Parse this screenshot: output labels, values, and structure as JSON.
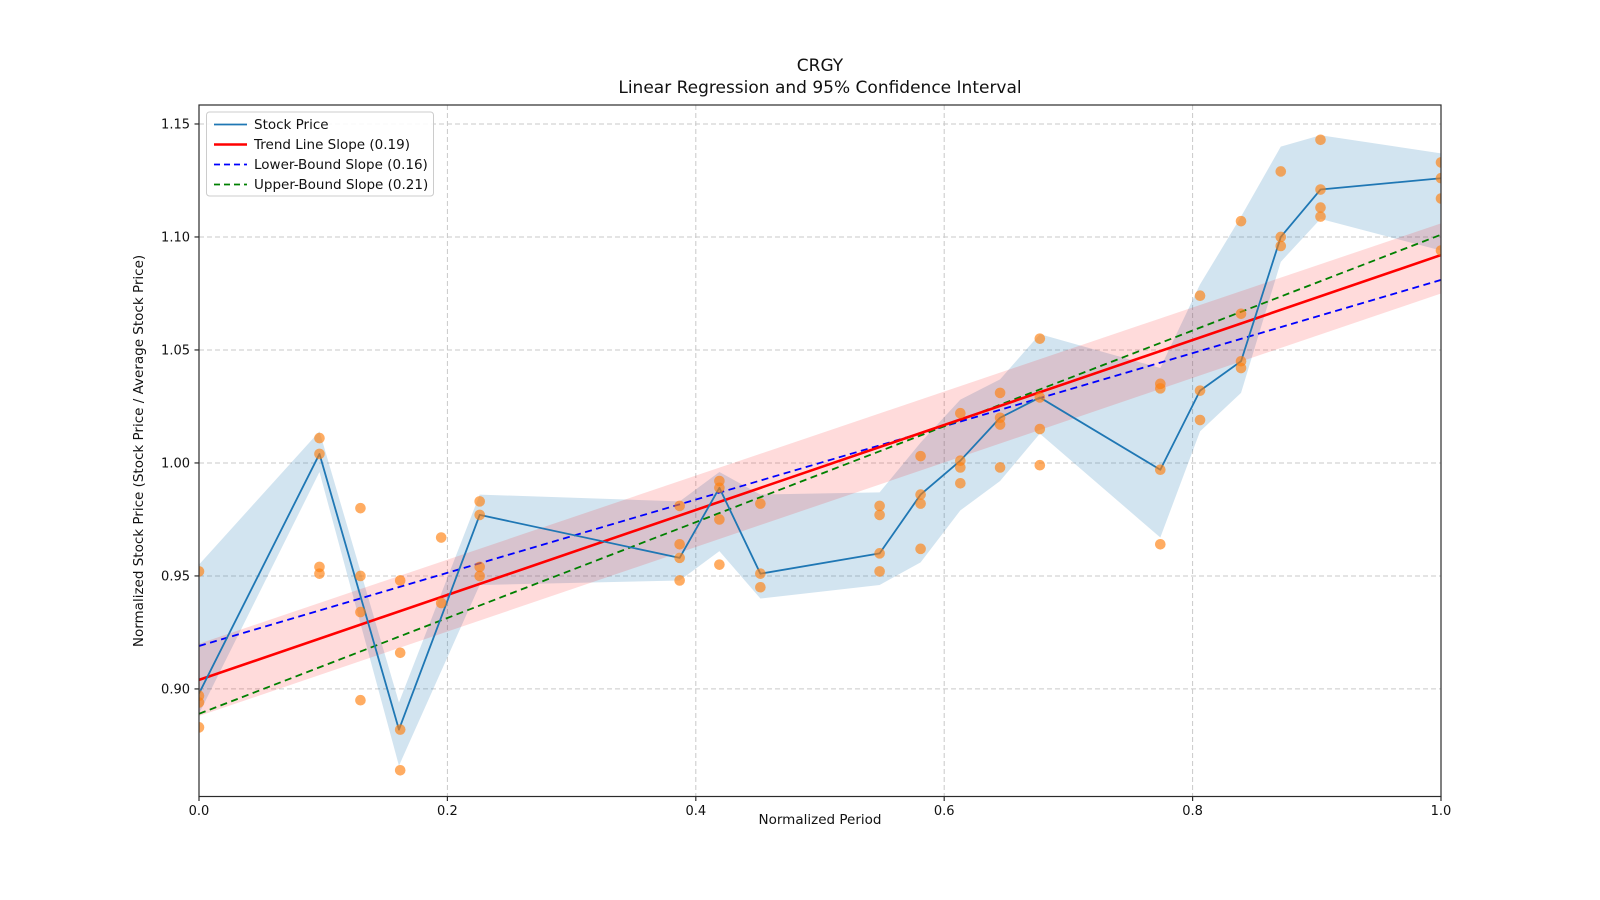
{
  "chart_data": {
    "type": "line",
    "title": "CRGY",
    "subtitle": "Linear Regression and 95% Confidence Interval",
    "xlabel": "Normalized Period",
    "ylabel": "Normalized Stock Price (Stock Price / Average Stock Price)",
    "xlim": [
      0.0,
      1.0
    ],
    "ylim": [
      0.8524,
      1.1584
    ],
    "grid": true,
    "legend_position": "upper left",
    "xticks": {
      "values": [
        0.0,
        0.2,
        0.4,
        0.6,
        0.8,
        1.0
      ],
      "labels": [
        "0.0",
        "0.2",
        "0.4",
        "0.6",
        "0.8",
        "1.0"
      ]
    },
    "yticks": {
      "values": [
        0.9,
        0.95,
        1.0,
        1.05,
        1.1,
        1.15
      ],
      "labels": [
        "0.90",
        "0.95",
        "1.00",
        "1.05",
        "1.10",
        "1.15"
      ]
    },
    "legend": [
      {
        "label": "Stock Price",
        "color": "#1f77b4",
        "dashed": false,
        "width": 1.8
      },
      {
        "label": "Trend Line Slope (0.19)",
        "color": "#ff0000",
        "dashed": false,
        "width": 2.6
      },
      {
        "label": "Lower-Bound Slope (0.16)",
        "color": "#0000ff",
        "dashed": true,
        "width": 1.8
      },
      {
        "label": "Upper-Bound Slope (0.21)",
        "color": "#008000",
        "dashed": true,
        "width": 1.8
      }
    ],
    "series": [
      {
        "name": "Stock Price",
        "x": [
          0.0,
          0.097,
          0.161,
          0.226,
          0.387,
          0.419,
          0.452,
          0.548,
          0.581,
          0.613,
          0.645,
          0.677,
          0.774,
          0.806,
          0.839,
          0.871,
          0.903,
          1.0
        ],
        "y": [
          0.898,
          1.004,
          0.882,
          0.977,
          0.958,
          0.989,
          0.951,
          0.96,
          0.986,
          1.001,
          1.02,
          1.029,
          0.997,
          1.032,
          1.045,
          1.1,
          1.121,
          1.126
        ],
        "band_upper": [
          0.955,
          1.014,
          0.894,
          0.986,
          0.983,
          0.996,
          0.986,
          0.987,
          1.009,
          1.028,
          1.037,
          1.057,
          1.042,
          1.079,
          1.109,
          1.14,
          1.145,
          1.137
        ],
        "band_lower": [
          0.889,
          0.996,
          0.866,
          0.946,
          0.948,
          0.961,
          0.94,
          0.946,
          0.956,
          0.979,
          0.992,
          1.013,
          0.967,
          1.014,
          1.031,
          1.089,
          1.108,
          1.094
        ]
      },
      {
        "name": "Trend Line Slope (0.19)",
        "slope": 0.19,
        "y_start": 0.904,
        "y_end": 1.092
      },
      {
        "name": "Lower-Bound Slope (0.16)",
        "slope": 0.16,
        "y_start": 0.919,
        "y_end": 1.081
      },
      {
        "name": "Upper-Bound Slope (0.21)",
        "slope": 0.21,
        "y_start": 0.889,
        "y_end": 1.101
      }
    ],
    "ci_band": {
      "upper_start": 0.92,
      "lower_start": 0.888,
      "upper_end": 1.106,
      "lower_end": 1.075
    },
    "scatter": [
      [
        0.0,
        0.952
      ],
      [
        0.0,
        0.897
      ],
      [
        0.0,
        0.894
      ],
      [
        0.0,
        0.883
      ],
      [
        0.097,
        1.011
      ],
      [
        0.097,
        1.004
      ],
      [
        0.097,
        0.954
      ],
      [
        0.097,
        0.951
      ],
      [
        0.13,
        0.98
      ],
      [
        0.13,
        0.95
      ],
      [
        0.13,
        0.934
      ],
      [
        0.13,
        0.895
      ],
      [
        0.162,
        0.948
      ],
      [
        0.162,
        0.916
      ],
      [
        0.162,
        0.882
      ],
      [
        0.162,
        0.864
      ],
      [
        0.195,
        0.967
      ],
      [
        0.195,
        0.938
      ],
      [
        0.226,
        0.983
      ],
      [
        0.226,
        0.977
      ],
      [
        0.226,
        0.954
      ],
      [
        0.226,
        0.95
      ],
      [
        0.387,
        0.981
      ],
      [
        0.387,
        0.964
      ],
      [
        0.387,
        0.958
      ],
      [
        0.387,
        0.948
      ],
      [
        0.419,
        0.992
      ],
      [
        0.419,
        0.989
      ],
      [
        0.419,
        0.975
      ],
      [
        0.419,
        0.955
      ],
      [
        0.452,
        0.982
      ],
      [
        0.452,
        0.951
      ],
      [
        0.452,
        0.945
      ],
      [
        0.548,
        0.981
      ],
      [
        0.548,
        0.977
      ],
      [
        0.548,
        0.96
      ],
      [
        0.548,
        0.952
      ],
      [
        0.581,
        1.003
      ],
      [
        0.581,
        0.986
      ],
      [
        0.581,
        0.982
      ],
      [
        0.581,
        0.962
      ],
      [
        0.613,
        1.022
      ],
      [
        0.613,
        1.001
      ],
      [
        0.613,
        0.998
      ],
      [
        0.613,
        0.991
      ],
      [
        0.645,
        1.031
      ],
      [
        0.645,
        1.02
      ],
      [
        0.645,
        1.017
      ],
      [
        0.645,
        0.998
      ],
      [
        0.677,
        1.055
      ],
      [
        0.677,
        1.029
      ],
      [
        0.677,
        1.015
      ],
      [
        0.677,
        0.999
      ],
      [
        0.774,
        1.035
      ],
      [
        0.774,
        1.033
      ],
      [
        0.774,
        0.997
      ],
      [
        0.774,
        0.964
      ],
      [
        0.806,
        1.074
      ],
      [
        0.806,
        1.032
      ],
      [
        0.806,
        1.019
      ],
      [
        0.839,
        1.107
      ],
      [
        0.839,
        1.066
      ],
      [
        0.839,
        1.045
      ],
      [
        0.839,
        1.042
      ],
      [
        0.871,
        1.129
      ],
      [
        0.871,
        1.1
      ],
      [
        0.871,
        1.096
      ],
      [
        0.903,
        1.143
      ],
      [
        0.903,
        1.121
      ],
      [
        0.903,
        1.113
      ],
      [
        0.903,
        1.109
      ],
      [
        1.0,
        1.133
      ],
      [
        1.0,
        1.126
      ],
      [
        1.0,
        1.117
      ],
      [
        1.0,
        1.094
      ]
    ],
    "colors": {
      "stock_line": "#1f77b4",
      "stock_band_fill": "#1f77b4",
      "stock_band_opacity": 0.2,
      "scatter_fill": "#ff7f0e",
      "scatter_opacity": 0.65,
      "trend_line": "#ff0000",
      "ci_band_fill": "#ff0000",
      "ci_band_opacity": 0.14,
      "lower_bound_line": "#0000ff",
      "upper_bound_line": "#008000",
      "grid": "#c9c9c9",
      "spine": "#2b2b2b",
      "text": "#111111",
      "legend_border": "#cccccc",
      "background": "#ffffff"
    }
  }
}
